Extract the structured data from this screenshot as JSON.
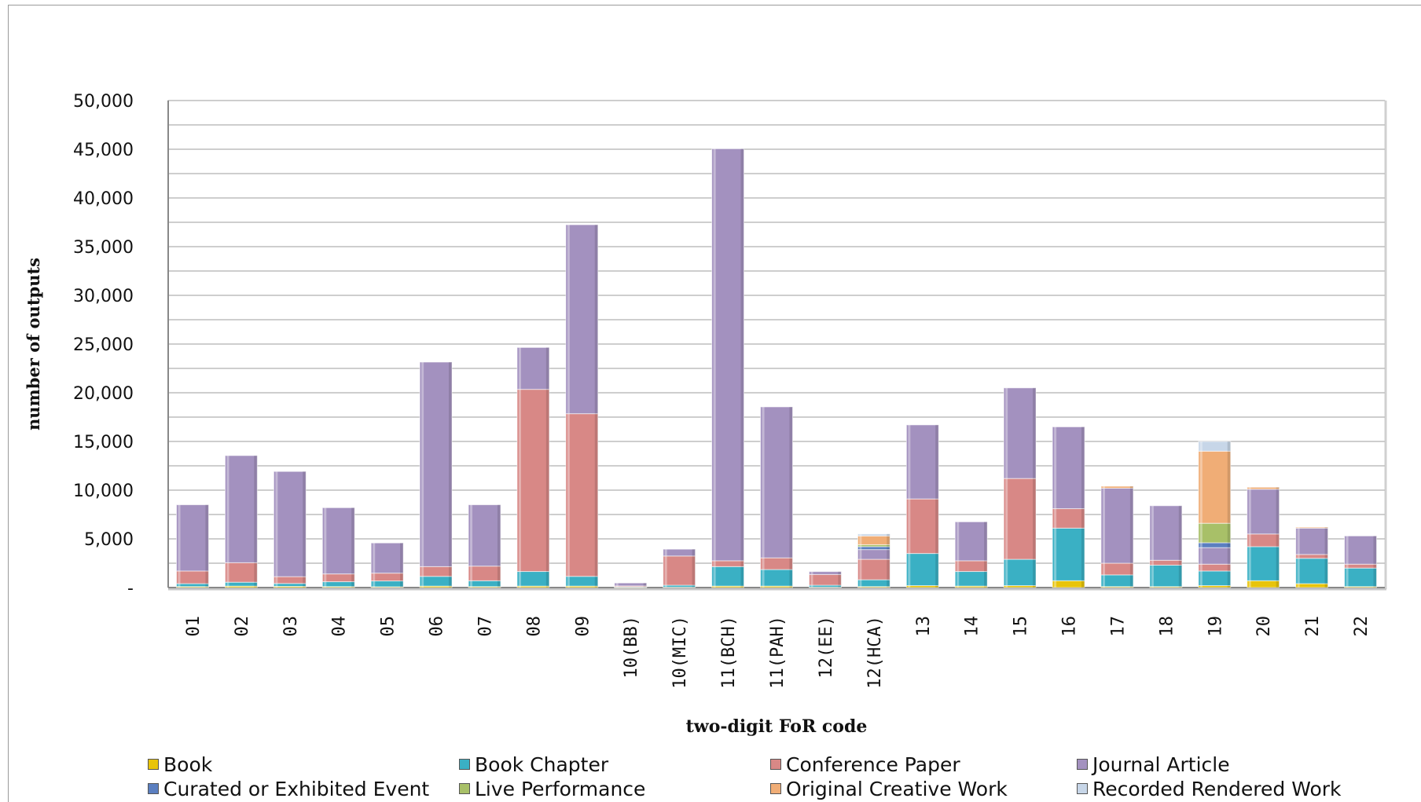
{
  "title": "",
  "chart_data": {
    "type": "bar",
    "stacked": true,
    "title": "",
    "xlabel": "two-digit FoR code",
    "ylabel": "number of outputs",
    "ylim": [
      0,
      50000
    ],
    "yticks": [
      0,
      5000,
      10000,
      15000,
      20000,
      25000,
      30000,
      35000,
      40000,
      45000,
      50000
    ],
    "ytick_labels": [
      "-",
      "5,000",
      "10,000",
      "15,000",
      "20,000",
      "25,000",
      "30,000",
      "35,000",
      "40,000",
      "45,000",
      "50,000"
    ],
    "grid": true,
    "legend_position": "bottom",
    "categories": [
      "01",
      "02",
      "03",
      "04",
      "05",
      "06",
      "07",
      "08",
      "09",
      "10(BB)",
      "10(MIC)",
      "11(BCH)",
      "11(PAH)",
      "12(EE)",
      "12(HCA)",
      "13",
      "14",
      "15",
      "16",
      "17",
      "18",
      "19",
      "20",
      "21",
      "22"
    ],
    "series": [
      {
        "name": "Book",
        "color": "#e8c40a",
        "values": [
          100,
          150,
          120,
          100,
          80,
          150,
          100,
          150,
          150,
          20,
          40,
          150,
          150,
          40,
          100,
          200,
          150,
          200,
          700,
          100,
          100,
          200,
          700,
          400,
          100
        ]
      },
      {
        "name": "Book Chapter",
        "color": "#3ab0c4",
        "values": [
          300,
          400,
          300,
          500,
          600,
          1000,
          600,
          1500,
          1000,
          50,
          200,
          2000,
          1700,
          200,
          700,
          3300,
          1500,
          2700,
          5400,
          1200,
          2200,
          1500,
          3500,
          2600,
          1900
        ]
      },
      {
        "name": "Conference Paper",
        "color": "#d88886",
        "values": [
          1300,
          2000,
          700,
          800,
          800,
          1000,
          1500,
          18700,
          16700,
          100,
          3000,
          600,
          1200,
          1100,
          2100,
          5600,
          1100,
          8300,
          2000,
          1200,
          500,
          700,
          1300,
          400,
          400
        ]
      },
      {
        "name": "Journal Article",
        "color": "#a391bf",
        "values": [
          6800,
          11000,
          10800,
          6800,
          3100,
          21000,
          6300,
          4300,
          19400,
          300,
          700,
          42300,
          15500,
          300,
          1000,
          7600,
          4000,
          9300,
          8400,
          7700,
          5600,
          1700,
          4600,
          2700,
          2900
        ]
      },
      {
        "name": "Curated or Exhibited Event",
        "color": "#5b7fc0",
        "values": [
          0,
          0,
          0,
          0,
          0,
          0,
          0,
          0,
          0,
          0,
          0,
          0,
          0,
          0,
          300,
          0,
          0,
          0,
          0,
          0,
          0,
          500,
          0,
          0,
          0
        ]
      },
      {
        "name": "Live Performance",
        "color": "#a8c068",
        "values": [
          0,
          0,
          0,
          0,
          0,
          0,
          0,
          0,
          0,
          0,
          0,
          0,
          0,
          0,
          200,
          0,
          0,
          0,
          0,
          0,
          0,
          2000,
          0,
          0,
          0
        ]
      },
      {
        "name": "Original Creative Work",
        "color": "#f0ad76",
        "values": [
          0,
          0,
          0,
          0,
          0,
          0,
          0,
          0,
          0,
          0,
          0,
          0,
          0,
          0,
          900,
          0,
          0,
          0,
          0,
          200,
          0,
          7400,
          200,
          100,
          0
        ]
      },
      {
        "name": "Recorded Rendered Work",
        "color": "#c7d6e8",
        "values": [
          0,
          0,
          0,
          0,
          0,
          0,
          0,
          0,
          0,
          0,
          0,
          0,
          0,
          0,
          200,
          0,
          0,
          0,
          0,
          0,
          0,
          1000,
          0,
          0,
          0
        ]
      }
    ]
  }
}
